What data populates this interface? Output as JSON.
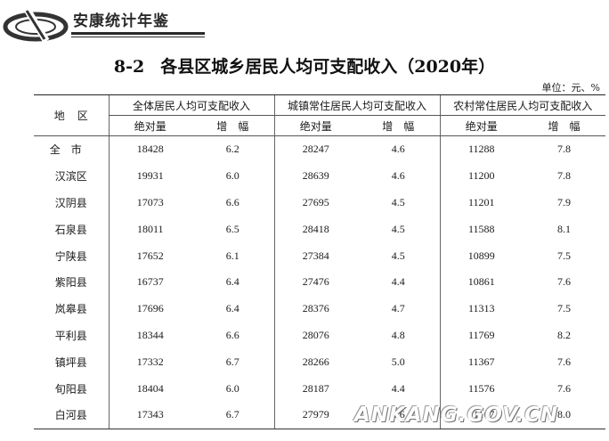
{
  "header": {
    "yearbook_title": "安康统计年鉴"
  },
  "table": {
    "number": "8-2",
    "title": "各县区城乡居民人均可支配收入（2020年）",
    "unit": "单位：元、%",
    "region_header": "地区",
    "groups": [
      "全体居民人均可支配收入",
      "城镇常住居民人均可支配收入",
      "农村常住居民人均可支配收入"
    ],
    "sub_headers": [
      "绝对量",
      "增　幅",
      "绝对量",
      "增　幅",
      "绝对量",
      "增　幅"
    ],
    "rows": [
      {
        "region": "全市",
        "c1": "18428",
        "c2": "6.2",
        "c3": "28247",
        "c4": "4.6",
        "c5": "11288",
        "c6": "7.8"
      },
      {
        "region": "汉滨区",
        "c1": "19931",
        "c2": "6.0",
        "c3": "28639",
        "c4": "4.6",
        "c5": "11200",
        "c6": "7.8"
      },
      {
        "region": "汉阴县",
        "c1": "17073",
        "c2": "6.6",
        "c3": "27695",
        "c4": "4.5",
        "c5": "11201",
        "c6": "7.9"
      },
      {
        "region": "石泉县",
        "c1": "18011",
        "c2": "6.5",
        "c3": "28418",
        "c4": "4.5",
        "c5": "11588",
        "c6": "8.1"
      },
      {
        "region": "宁陕县",
        "c1": "17652",
        "c2": "6.1",
        "c3": "27384",
        "c4": "4.5",
        "c5": "10899",
        "c6": "7.5"
      },
      {
        "region": "紫阳县",
        "c1": "16737",
        "c2": "6.4",
        "c3": "27476",
        "c4": "4.4",
        "c5": "10861",
        "c6": "7.6"
      },
      {
        "region": "岚皋县",
        "c1": "17696",
        "c2": "6.4",
        "c3": "28376",
        "c4": "4.7",
        "c5": "11313",
        "c6": "7.5"
      },
      {
        "region": "平利县",
        "c1": "18344",
        "c2": "6.6",
        "c3": "28076",
        "c4": "4.8",
        "c5": "11769",
        "c6": "8.2"
      },
      {
        "region": "镇坪县",
        "c1": "17332",
        "c2": "6.7",
        "c3": "28266",
        "c4": "5.0",
        "c5": "11367",
        "c6": "7.6"
      },
      {
        "region": "旬阳县",
        "c1": "18404",
        "c2": "6.0",
        "c3": "28187",
        "c4": "4.4",
        "c5": "11576",
        "c6": "7.6"
      },
      {
        "region": "白河县",
        "c1": "17343",
        "c2": "6.7",
        "c3": "27979",
        "c4": "4.6",
        "c5": "11107",
        "c6": "8.0"
      }
    ]
  },
  "watermark": "ANKANG.GOV.CN"
}
